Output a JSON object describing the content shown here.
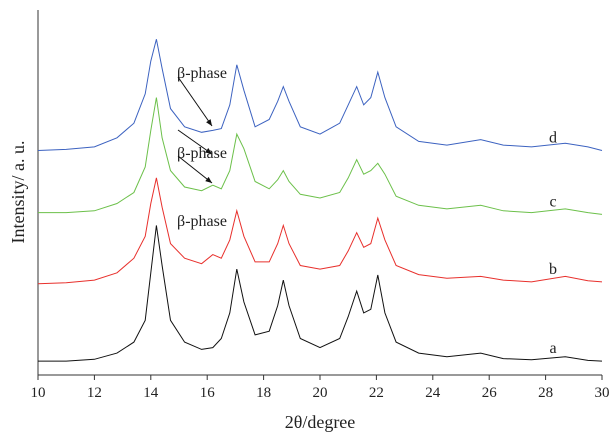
{
  "chart_data": {
    "type": "line",
    "xlabel": "2θ/degree",
    "ylabel": "Intensity/ a. u.",
    "xlim": [
      10,
      30
    ],
    "xticks": [
      10,
      12,
      14,
      16,
      18,
      20,
      22,
      24,
      26,
      28,
      30
    ],
    "ylim": [
      0,
      100
    ],
    "x": [
      10,
      11,
      12,
      12.8,
      13.4,
      13.8,
      14.0,
      14.2,
      14.4,
      14.7,
      15.2,
      15.8,
      16.2,
      16.5,
      16.8,
      17.05,
      17.3,
      17.7,
      18.2,
      18.5,
      18.7,
      18.9,
      19.3,
      20,
      20.7,
      21.0,
      21.3,
      21.55,
      21.8,
      22.05,
      22.3,
      22.7,
      23.5,
      24.5,
      25.7,
      26.5,
      27.5,
      28.7,
      29.5,
      30
    ],
    "series": [
      {
        "name": "a",
        "color": "#111111",
        "values": [
          3.8,
          3.8,
          4.3,
          6,
          9,
          15,
          28,
          41,
          30,
          15,
          9,
          7,
          7.5,
          10,
          17,
          29,
          20,
          11,
          12,
          19,
          26,
          19,
          10,
          7.5,
          10,
          16,
          23,
          17,
          18,
          27.4,
          17,
          9,
          6,
          5,
          6,
          4.5,
          4.2,
          5,
          4,
          3.8
        ]
      },
      {
        "name": "b",
        "color": "#e8302c",
        "values": [
          25,
          25.3,
          26,
          28,
          32,
          38,
          47,
          54,
          46,
          36,
          32,
          30.5,
          33,
          32,
          37,
          45,
          38,
          31,
          31,
          36,
          41,
          36,
          30,
          29,
          30,
          34,
          39,
          35,
          36,
          43,
          37,
          30,
          27.5,
          26.5,
          27,
          26,
          25.5,
          27,
          25.8,
          25.5
        ]
      },
      {
        "name": "c",
        "color": "#6cc04a",
        "values": [
          44.5,
          44.5,
          45,
          47,
          50,
          57,
          67,
          76,
          65,
          56,
          51.5,
          50.5,
          52,
          51,
          56,
          66,
          62,
          53,
          51,
          53.5,
          56,
          53,
          49.5,
          48.5,
          50,
          54,
          59,
          55,
          56,
          58,
          55,
          49,
          46.5,
          45.5,
          46.5,
          45,
          44.5,
          45.5,
          44.5,
          44
        ]
      },
      {
        "name": "d",
        "color": "#3c62c0",
        "values": [
          61.5,
          61.8,
          62.5,
          65,
          69,
          77,
          86,
          92,
          84,
          73,
          68,
          66.5,
          67,
          67.5,
          74,
          85,
          78,
          68,
          70,
          75,
          79,
          75,
          68,
          66,
          69,
          74,
          79,
          74,
          76,
          83,
          76,
          68,
          64,
          63,
          64.5,
          63,
          62.5,
          63.5,
          62.5,
          61.5
        ]
      }
    ],
    "annotations": [
      "β-phase",
      "β-phase",
      "β-phase"
    ]
  }
}
